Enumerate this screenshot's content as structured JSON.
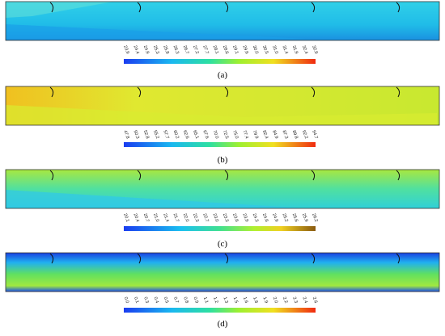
{
  "panels": [
    {
      "colorbar_ticks": [
        "23.9",
        "24.4",
        "24.9",
        "25.3",
        "25.8",
        "26.3",
        "26.7",
        "27.2",
        "27.7",
        "28.1",
        "28.6",
        "29.1",
        "29.6",
        "30.0",
        "30.5",
        "31.0",
        "31.4",
        "31.9",
        "32.4",
        "32.9"
      ],
      "caption": "(a)"
    },
    {
      "colorbar_ticks": [
        "47.8",
        "50.3",
        "52.8",
        "55.2",
        "57.7",
        "60.2",
        "62.6",
        "65.1",
        "67.6",
        "70.0",
        "72.5",
        "75.0",
        "77.4",
        "79.9",
        "82.4",
        "84.9",
        "87.3",
        "89.8",
        "92.2",
        "94.7"
      ],
      "caption": "(b)"
    },
    {
      "colorbar_ticks": [
        "20.1",
        "20.4",
        "20.7",
        "21.0",
        "21.4",
        "21.7",
        "22.0",
        "22.3",
        "22.7",
        "23.0",
        "23.3",
        "23.6",
        "23.9",
        "24.3",
        "24.6",
        "24.9",
        "25.2",
        "25.6",
        "25.9",
        "26.2"
      ],
      "caption": "(c)"
    },
    {
      "colorbar_ticks": [
        "0.0",
        "0.1",
        "0.3",
        "0.4",
        "0.5",
        "0.7",
        "0.8",
        "0.9",
        "1.1",
        "1.2",
        "1.3",
        "1.5",
        "1.6",
        "1.8",
        "1.9",
        "2.0",
        "2.2",
        "2.3",
        "2.4",
        "2.6"
      ],
      "caption": "(d)"
    }
  ]
}
